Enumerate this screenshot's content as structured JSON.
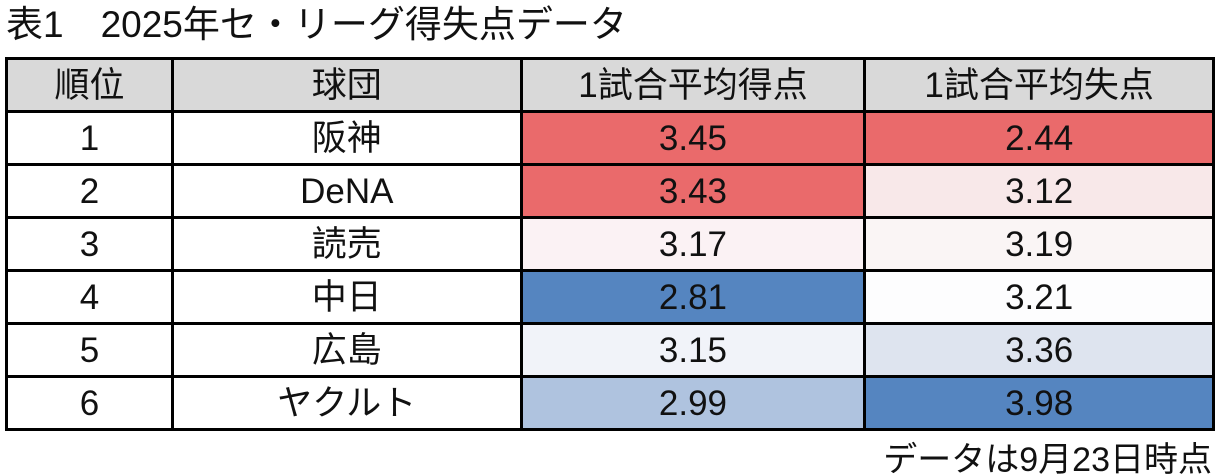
{
  "title": "表1　2025年セ・リーグ得失点データ",
  "footnote": "データは9月23日時点",
  "table": {
    "header_bg": "#d9d9d9",
    "headers": {
      "rank": "順位",
      "team": "球団",
      "scored": "1試合平均得点",
      "allowed": "1試合平均失点"
    },
    "rows": [
      {
        "rank": "1",
        "team": "阪神",
        "scored": "3.45",
        "scored_bg": "#ea6a6b",
        "allowed": "2.44",
        "allowed_bg": "#ea6a6b"
      },
      {
        "rank": "2",
        "team": "DeNA",
        "scored": "3.43",
        "scored_bg": "#ea6a6b",
        "allowed": "3.12",
        "allowed_bg": "#f8e8e9"
      },
      {
        "rank": "3",
        "team": "読売",
        "scored": "3.17",
        "scored_bg": "#fbf2f4",
        "allowed": "3.19",
        "allowed_bg": "#faf5f5"
      },
      {
        "rank": "4",
        "team": "中日",
        "scored": "2.81",
        "scored_bg": "#5585c0",
        "allowed": "3.21",
        "allowed_bg": "#fdfdfe"
      },
      {
        "rank": "5",
        "team": "広島",
        "scored": "3.15",
        "scored_bg": "#f1f3f9",
        "allowed": "3.36",
        "allowed_bg": "#dee4ef"
      },
      {
        "rank": "6",
        "team": "ヤクルト",
        "scored": "2.99",
        "scored_bg": "#afc3df",
        "allowed": "3.98",
        "allowed_bg": "#5585c0"
      }
    ]
  },
  "chart_data": {
    "type": "table",
    "title": "表1 2025年セ・リーグ得失点データ",
    "columns": [
      "順位",
      "球団",
      "1試合平均得点",
      "1試合平均失点"
    ],
    "rows": [
      [
        1,
        "阪神",
        3.45,
        2.44
      ],
      [
        2,
        "DeNA",
        3.43,
        3.12
      ],
      [
        3,
        "読売",
        3.17,
        3.19
      ],
      [
        4,
        "中日",
        2.81,
        3.21
      ],
      [
        5,
        "広島",
        3.15,
        3.36
      ],
      [
        6,
        "ヤクルト",
        2.99,
        3.98
      ]
    ],
    "note": "データは9月23日時点",
    "color_encoding": "per-column heatmap: red = favorable extreme (most runs scored / fewest runs allowed), blue = unfavorable extreme",
    "colors": {
      "strong_red": "#ea6a6b",
      "strong_blue": "#5585c0",
      "header_gray": "#d9d9d9"
    }
  }
}
